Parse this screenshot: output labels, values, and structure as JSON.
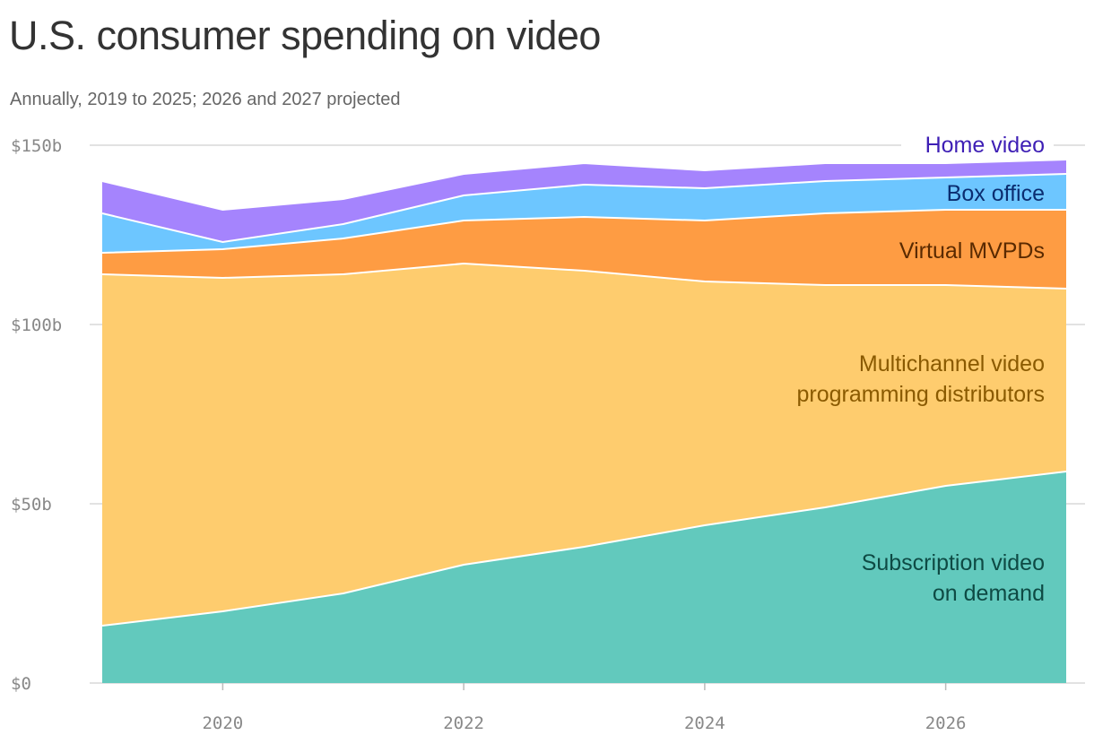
{
  "chart_data": {
    "type": "area",
    "stacked": true,
    "title": "U.S. consumer spending on video",
    "subtitle": "Annually, 2019 to 2025; 2026 and 2027 projected",
    "xlabel": "",
    "ylabel": "",
    "x": [
      2019,
      2020,
      2021,
      2022,
      2023,
      2024,
      2025,
      2026,
      2027
    ],
    "xlim": [
      2019,
      2027
    ],
    "ylim": [
      0,
      150
    ],
    "x_ticks": [
      2020,
      2022,
      2024,
      2026
    ],
    "x_tick_labels": [
      "2020",
      "2022",
      "2024",
      "2026"
    ],
    "y_ticks": [
      0,
      50,
      100,
      150
    ],
    "y_tick_labels": [
      "$0",
      "$50b",
      "$100b",
      "$150b"
    ],
    "grid": true,
    "series": [
      {
        "name": "Subscription video on demand",
        "label_lines": [
          "Subscription video",
          "on demand"
        ],
        "color": "#62c9bd",
        "label_color": "#0e4a44",
        "values": [
          16,
          20,
          25,
          33,
          38,
          44,
          49,
          55,
          59
        ]
      },
      {
        "name": "Multichannel video programming distributors",
        "label_lines": [
          "Multichannel video",
          "programming distributors"
        ],
        "color": "#fecc6e",
        "label_color": "#8a5a00",
        "values": [
          98,
          93,
          89,
          84,
          77,
          68,
          62,
          56,
          51
        ]
      },
      {
        "name": "Virtual MVPDs",
        "label_lines": [
          "Virtual MVPDs"
        ],
        "color": "#fe9c43",
        "label_color": "#5a2a00",
        "values": [
          6,
          8,
          10,
          12,
          15,
          17,
          20,
          21,
          22
        ]
      },
      {
        "name": "Box office",
        "label_lines": [
          "Box office"
        ],
        "color": "#6dc6ff",
        "label_color": "#0b2d70",
        "values": [
          11,
          2,
          4,
          7,
          9,
          9,
          9,
          9,
          10
        ]
      },
      {
        "name": "Home video",
        "label_lines": [
          "Home video"
        ],
        "color": "#a584fd",
        "label_color": "#3e1fb5",
        "values": [
          9,
          9,
          7,
          6,
          6,
          5,
          5,
          4,
          4
        ]
      }
    ]
  }
}
